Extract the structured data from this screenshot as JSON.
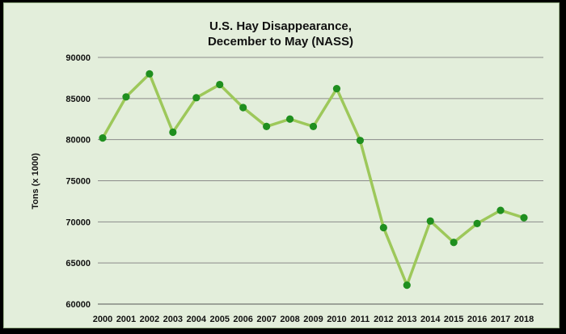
{
  "chart_data": {
    "type": "line",
    "title_lines": [
      "U.S. Hay Disappearance,",
      "December to May  (NASS)"
    ],
    "xlabel": "",
    "ylabel": "Tons (x 1000)",
    "ylim": [
      60000,
      90000
    ],
    "yticks": [
      90000,
      85000,
      80000,
      75000,
      70000,
      65000,
      60000
    ],
    "grid": true,
    "legend": "none",
    "categories": [
      "2000",
      "2001",
      "2002",
      "2003",
      "2004",
      "2005",
      "2006",
      "2007",
      "2008",
      "2009",
      "2010",
      "2011",
      "2012",
      "2013",
      "2014",
      "2015",
      "2016",
      "2017",
      "2018"
    ],
    "series": [
      {
        "values": [
          80200,
          85200,
          88000,
          80900,
          85100,
          86700,
          83900,
          81600,
          82500,
          81600,
          86200,
          79900,
          69300,
          62300,
          70100,
          67500,
          69800,
          71400,
          70500
        ]
      }
    ],
    "colors": {
      "line": "#9dc85a",
      "marker": "#1f8f1f",
      "background": "#e3eedb",
      "grid": "#8a8a8a"
    }
  }
}
